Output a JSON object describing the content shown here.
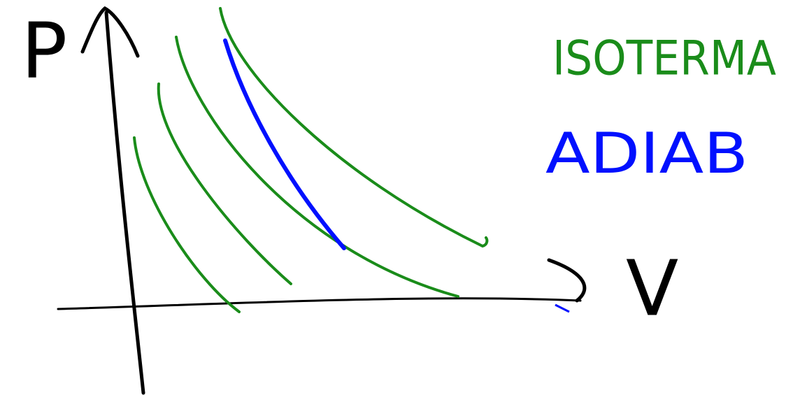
{
  "axes": {
    "y_label": "P",
    "x_label": "V"
  },
  "legend": {
    "isotherm": "ISOTERMA",
    "adiabat": "ADIAB"
  }
}
